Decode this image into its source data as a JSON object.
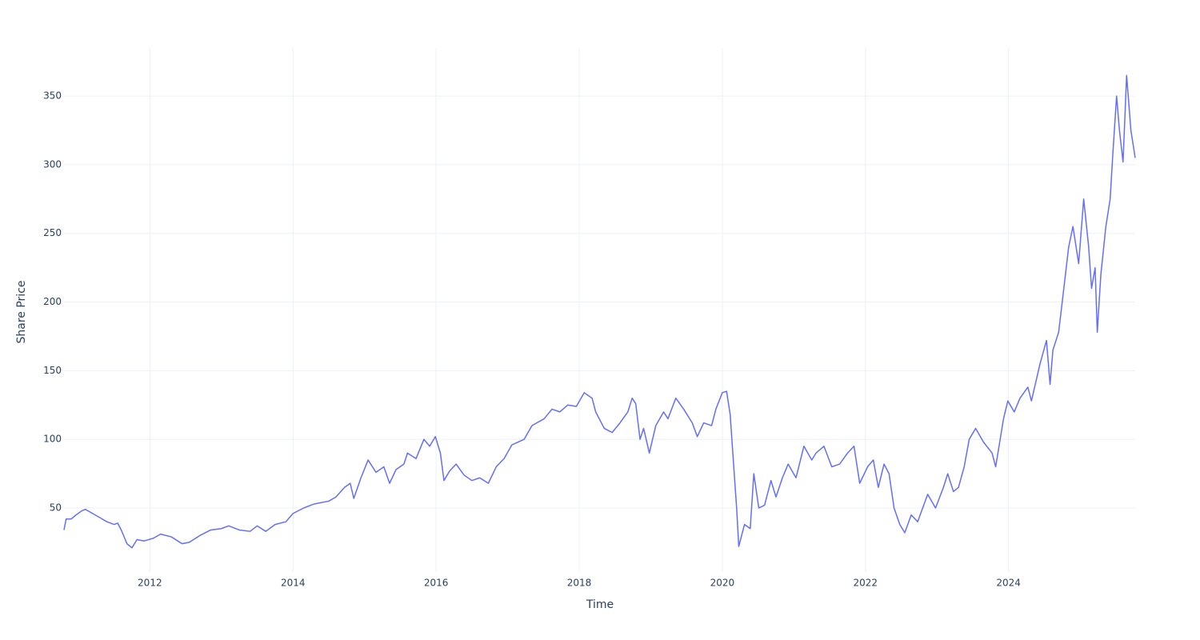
{
  "chart_data": {
    "type": "line",
    "xlabel": "Time",
    "ylabel": "Share Price",
    "color": "#636efa",
    "grid": true,
    "xlim": [
      2010.8,
      2025.77
    ],
    "xticks": [
      2012,
      2014,
      2016,
      2018,
      2020,
      2022,
      2024
    ],
    "ylim": [
      3.4,
      385
    ],
    "yticks": [
      50,
      100,
      150,
      200,
      250,
      300,
      350
    ],
    "x": [
      2010.8,
      2010.83,
      2010.9,
      2010.97,
      2011.05,
      2011.1,
      2011.2,
      2011.3,
      2011.4,
      2011.5,
      2011.55,
      2011.6,
      2011.68,
      2011.75,
      2011.82,
      2011.92,
      2012.05,
      2012.15,
      2012.3,
      2012.45,
      2012.55,
      2012.7,
      2012.85,
      2013.0,
      2013.1,
      2013.25,
      2013.4,
      2013.5,
      2013.62,
      2013.75,
      2013.9,
      2014.0,
      2014.15,
      2014.3,
      2014.5,
      2014.6,
      2014.72,
      2014.8,
      2014.85,
      2014.95,
      2015.05,
      2015.16,
      2015.27,
      2015.35,
      2015.44,
      2015.55,
      2015.6,
      2015.72,
      2015.83,
      2015.91,
      2015.99,
      2016.06,
      2016.11,
      2016.19,
      2016.28,
      2016.39,
      2016.5,
      2016.61,
      2016.73,
      2016.84,
      2016.95,
      2017.06,
      2017.23,
      2017.34,
      2017.51,
      2017.62,
      2017.73,
      2017.84,
      2017.96,
      2018.07,
      2018.18,
      2018.23,
      2018.35,
      2018.46,
      2018.57,
      2018.68,
      2018.74,
      2018.79,
      2018.85,
      2018.9,
      2018.98,
      2019.07,
      2019.18,
      2019.24,
      2019.35,
      2019.46,
      2019.58,
      2019.65,
      2019.74,
      2019.85,
      2019.91,
      2020.0,
      2020.06,
      2020.11,
      2020.16,
      2020.2,
      2020.23,
      2020.31,
      2020.39,
      2020.44,
      2020.51,
      2020.59,
      2020.68,
      2020.75,
      2020.84,
      2020.92,
      2021.03,
      2021.14,
      2021.25,
      2021.31,
      2021.42,
      2021.53,
      2021.64,
      2021.75,
      2021.84,
      2021.92,
      2022.03,
      2022.11,
      2022.18,
      2022.26,
      2022.33,
      2022.4,
      2022.48,
      2022.55,
      2022.64,
      2022.73,
      2022.87,
      2022.98,
      2023.09,
      2023.15,
      2023.23,
      2023.3,
      2023.38,
      2023.45,
      2023.54,
      2023.65,
      2023.77,
      2023.82,
      2023.93,
      2023.99,
      2024.08,
      2024.16,
      2024.27,
      2024.32,
      2024.44,
      2024.53,
      2024.58,
      2024.62,
      2024.7,
      2024.75,
      2024.84,
      2024.9,
      2024.98,
      2025.05,
      2025.12,
      2025.16,
      2025.21,
      2025.24,
      2025.29,
      2025.36,
      2025.42,
      2025.46,
      2025.51,
      2025.55,
      2025.6,
      2025.65,
      2025.71,
      2025.77
    ],
    "values": [
      34,
      42,
      42,
      45,
      48,
      49,
      46,
      43,
      40,
      38,
      39,
      34,
      24,
      21,
      27,
      26,
      28,
      31,
      29,
      24,
      25,
      30,
      34,
      35,
      37,
      34,
      33,
      37,
      33,
      38,
      40,
      46,
      50,
      53,
      55,
      58,
      65,
      68,
      57,
      72,
      85,
      76,
      80,
      68,
      78,
      82,
      90,
      86,
      100,
      95,
      102,
      90,
      70,
      77,
      82,
      74,
      70,
      72,
      68,
      80,
      86,
      96,
      100,
      110,
      115,
      122,
      120,
      125,
      124,
      134,
      130,
      120,
      108,
      105,
      112,
      120,
      130,
      126,
      100,
      108,
      90,
      110,
      120,
      115,
      130,
      122,
      112,
      102,
      112,
      110,
      122,
      134,
      135,
      118,
      80,
      50,
      22,
      38,
      35,
      75,
      50,
      52,
      70,
      58,
      72,
      82,
      72,
      95,
      85,
      90,
      95,
      80,
      82,
      90,
      95,
      68,
      80,
      85,
      65,
      82,
      75,
      50,
      38,
      32,
      45,
      40,
      60,
      50,
      65,
      75,
      62,
      65,
      80,
      100,
      108,
      98,
      90,
      80,
      115,
      128,
      120,
      130,
      138,
      128,
      155,
      172,
      140,
      165,
      178,
      200,
      240,
      255,
      228,
      275,
      240,
      210,
      225,
      178,
      220,
      255,
      275,
      310,
      350,
      325,
      302,
      365,
      325,
      305
    ]
  }
}
